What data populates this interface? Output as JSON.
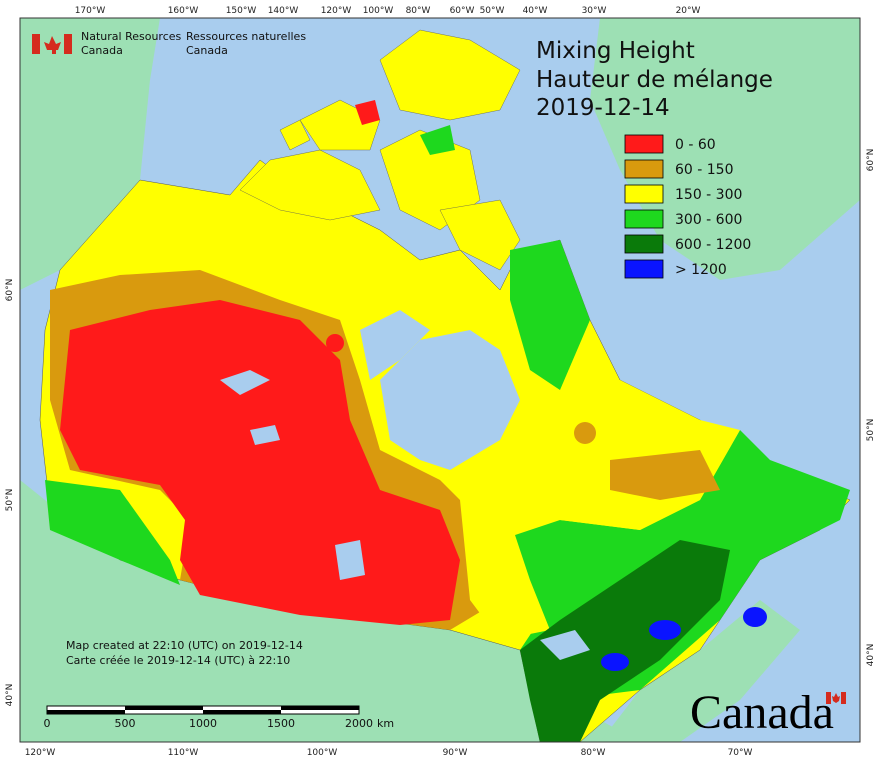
{
  "agency": {
    "en": [
      "Natural Resources",
      "Canada"
    ],
    "fr": [
      "Ressources naturelles",
      "Canada"
    ]
  },
  "title": [
    "Mixing Height",
    "Hauteur de mélange",
    "2019-12-14"
  ],
  "legend": [
    {
      "label": "0 - 60",
      "color": "#ff1a1a"
    },
    {
      "label": "60 - 150",
      "color": "#d99a0e"
    },
    {
      "label": "150 - 300",
      "color": "#ffff00"
    },
    {
      "label": "300 - 600",
      "color": "#1ed81e"
    },
    {
      "label": "600 - 1200",
      "color": "#0a7a0a"
    },
    {
      "label": "> 1200",
      "color": "#0a14ff"
    }
  ],
  "graticule": {
    "top": [
      "170°W",
      "160°W",
      "150°W",
      "140°W",
      "120°W",
      "100°W",
      "80°W",
      "60°W",
      "50°W",
      "40°W",
      "30°W",
      "20°W"
    ],
    "bottom": [
      "120°W",
      "110°W",
      "100°W",
      "90°W",
      "80°W",
      "70°W"
    ],
    "left": [
      "60°N",
      "50°N",
      "40°N"
    ],
    "right": [
      "60°N",
      "50°N",
      "40°N"
    ]
  },
  "notes": [
    "Map created at 22:10 (UTC) on 2019-12-14",
    "Carte créée le 2019-12-14 (UTC) à 22:10"
  ],
  "scale_bar": {
    "labels": [
      "0",
      "500",
      "1000",
      "1500",
      "2000"
    ],
    "unit": "km"
  },
  "wordmark": "Canada"
}
